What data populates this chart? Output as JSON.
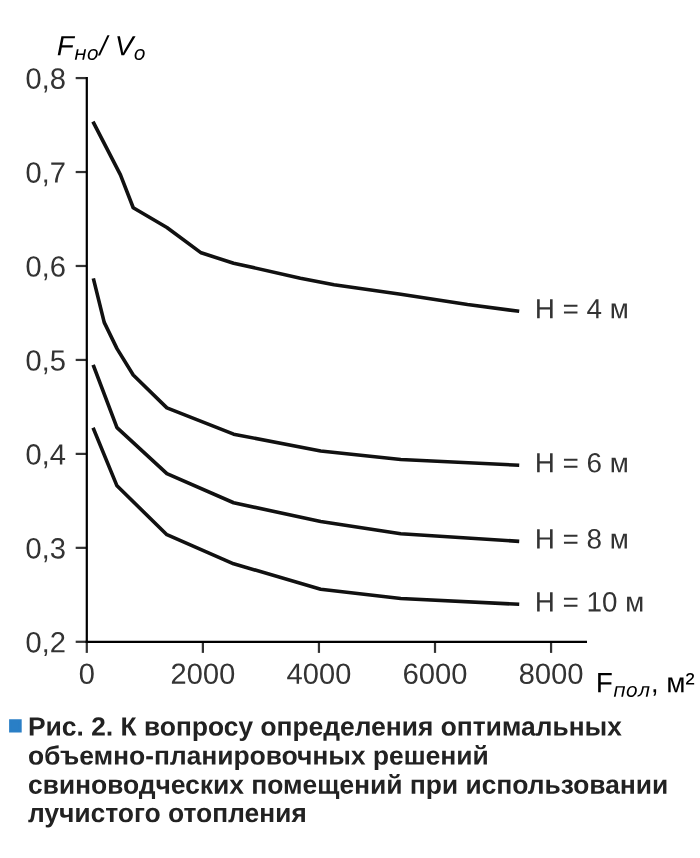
{
  "chart_data": {
    "type": "line",
    "xlabel": "F$_{пол}$, м²",
    "ylabel": "F$_{но}$/ V$_{о}$",
    "xlim": [
      0,
      8600
    ],
    "ylim": [
      0.2,
      0.8
    ],
    "xticks": [
      0,
      2000,
      4000,
      6000,
      8000
    ],
    "yticks": [
      {
        "value": 0.2,
        "label": "0,2"
      },
      {
        "value": 0.3,
        "label": "0,3"
      },
      {
        "value": 0.4,
        "label": "0,4"
      },
      {
        "value": 0.5,
        "label": "0,5"
      },
      {
        "value": 0.6,
        "label": "0,6"
      },
      {
        "value": 0.7,
        "label": "0,7"
      },
      {
        "value": 0.8,
        "label": "0,8"
      }
    ],
    "grid": false,
    "marker": "none",
    "line_style": "solid",
    "series": [
      {
        "name": "H = 4 м",
        "color": "#111111",
        "x": [
          120,
          580,
          800,
          1380,
          1970,
          2530,
          3680,
          4260,
          5410,
          6560,
          7420
        ],
        "values": [
          0.752,
          0.697,
          0.662,
          0.641,
          0.614,
          0.603,
          0.587,
          0.58,
          0.57,
          0.559,
          0.552
        ]
      },
      {
        "name": "H = 6 м",
        "color": "#111111",
        "x": [
          120,
          300,
          520,
          800,
          1380,
          2530,
          4030,
          5410,
          7420
        ],
        "values": [
          0.585,
          0.54,
          0.512,
          0.484,
          0.449,
          0.421,
          0.403,
          0.394,
          0.388
        ]
      },
      {
        "name": "H = 8 м",
        "color": "#111111",
        "x": [
          120,
          520,
          1380,
          2530,
          4030,
          5410,
          7420
        ],
        "values": [
          0.493,
          0.428,
          0.379,
          0.348,
          0.328,
          0.315,
          0.307
        ]
      },
      {
        "name": "H = 10 м",
        "color": "#111111",
        "x": [
          120,
          520,
          1380,
          2530,
          4030,
          5410,
          7420
        ],
        "values": [
          0.426,
          0.366,
          0.314,
          0.283,
          0.256,
          0.246,
          0.24
        ]
      }
    ],
    "annotations": [
      "Рис. 2. К вопросу определения оптимальных объемно-планировочных решений свиноводческих помещений при использовании лучистого отопления"
    ]
  }
}
